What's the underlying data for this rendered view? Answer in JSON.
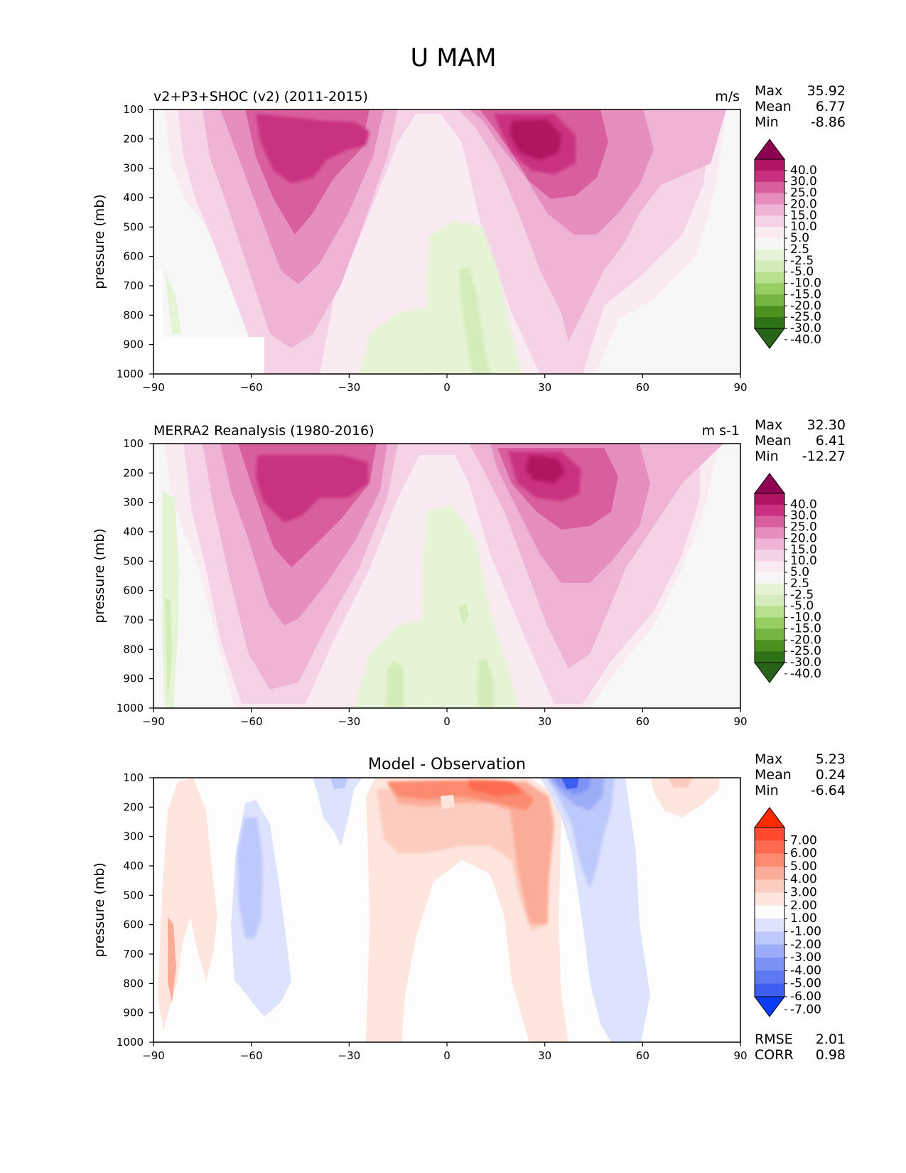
{
  "figure": {
    "title": "U MAM"
  },
  "chart_data": [
    {
      "type": "contour",
      "title": "v2+P3+SHOC (v2) (2011-2015)",
      "units": "m/s",
      "ylabel": "pressure (mb)",
      "xlabel": "",
      "xlim": [
        -90,
        90
      ],
      "ylim": [
        1000,
        100
      ],
      "x_ticks": [
        "−90",
        "−60",
        "−30",
        "0",
        "30",
        "60",
        "90"
      ],
      "y_ticks": [
        "100",
        "200",
        "300",
        "400",
        "500",
        "600",
        "700",
        "800",
        "900",
        "1000"
      ],
      "stats": [
        {
          "label": "Max",
          "value": "35.92"
        },
        {
          "label": "Mean",
          "value": "6.77"
        },
        {
          "label": "Min",
          "value": "-8.86"
        }
      ],
      "colorbar": {
        "labels": [
          "40.0",
          "30.0",
          "25.0",
          "20.0",
          "15.0",
          "10.0",
          "5.0",
          "2.5",
          "-2.5",
          "-5.0",
          "-10.0",
          "-15.0",
          "-20.0",
          "-25.0",
          "-30.0",
          "-40.0"
        ],
        "colors": [
          "#8e0152",
          "#b0135f",
          "#c9307f",
          "#d95f9c",
          "#e68fbf",
          "#efb3d6",
          "#f6d2e7",
          "#faeaf2",
          "#f7f7f7",
          "#e6f4d6",
          "#d3ecba",
          "#b8e08e",
          "#96ce62",
          "#73b443",
          "#4d9221",
          "#2e7218",
          "#276419"
        ]
      },
      "jets": [
        {
          "lat": -48,
          "plev": 200,
          "max": 30
        },
        {
          "lat": 28,
          "plev": 200,
          "max": 35.92
        }
      ]
    },
    {
      "type": "contour",
      "title": "MERRA2 Reanalysis (1980-2016)",
      "units": "m s-1",
      "ylabel": "pressure (mb)",
      "xlabel": "",
      "xlim": [
        -90,
        90
      ],
      "ylim": [
        1000,
        100
      ],
      "x_ticks": [
        "−90",
        "−60",
        "−30",
        "0",
        "30",
        "60",
        "90"
      ],
      "y_ticks": [
        "100",
        "200",
        "300",
        "400",
        "500",
        "600",
        "700",
        "800",
        "900",
        "1000"
      ],
      "stats": [
        {
          "label": "Max",
          "value": "32.30"
        },
        {
          "label": "Mean",
          "value": "6.41"
        },
        {
          "label": "Min",
          "value": "-12.27"
        }
      ],
      "colorbar": {
        "labels": [
          "40.0",
          "30.0",
          "25.0",
          "20.0",
          "15.0",
          "10.0",
          "5.0",
          "2.5",
          "-2.5",
          "-5.0",
          "-10.0",
          "-15.0",
          "-20.0",
          "-25.0",
          "-30.0",
          "-40.0"
        ],
        "colors": [
          "#8e0152",
          "#b0135f",
          "#c9307f",
          "#d95f9c",
          "#e68fbf",
          "#efb3d6",
          "#f6d2e7",
          "#faeaf2",
          "#f7f7f7",
          "#e6f4d6",
          "#d3ecba",
          "#b8e08e",
          "#96ce62",
          "#73b443",
          "#4d9221",
          "#2e7218",
          "#276419"
        ]
      },
      "jets": [
        {
          "lat": -48,
          "plev": 220,
          "max": 30
        },
        {
          "lat": 28,
          "plev": 200,
          "max": 32.3
        }
      ]
    },
    {
      "type": "contour",
      "title": "Model - Observation",
      "units": "",
      "ylabel": "pressure (mb)",
      "xlabel": "",
      "xlim": [
        -90,
        90
      ],
      "ylim": [
        1000,
        100
      ],
      "x_ticks": [
        "−90",
        "−60",
        "−30",
        "0",
        "30",
        "60",
        "90"
      ],
      "y_ticks": [
        "100",
        "200",
        "300",
        "400",
        "500",
        "600",
        "700",
        "800",
        "900",
        "1000"
      ],
      "stats": [
        {
          "label": "Max",
          "value": "5.23"
        },
        {
          "label": "Mean",
          "value": "0.24"
        },
        {
          "label": "Min",
          "value": "-6.64"
        }
      ],
      "metrics": [
        {
          "label": "RMSE",
          "value": "2.01"
        },
        {
          "label": "CORR",
          "value": "0.98"
        }
      ],
      "colorbar": {
        "labels": [
          "7.00",
          "6.00",
          "5.00",
          "4.00",
          "3.00",
          "2.00",
          "1.00",
          "-1.00",
          "-2.00",
          "-3.00",
          "-4.00",
          "-5.00",
          "-6.00",
          "-7.00"
        ],
        "colors": [
          "#ff2a00",
          "#ff4a30",
          "#fd6a50",
          "#fb8a70",
          "#fbac98",
          "#fdccc0",
          "#fee6de",
          "#fdfdfd",
          "#dde3fd",
          "#bdc8fb",
          "#9dacf8",
          "#7d92f6",
          "#5d78f3",
          "#3d5ef0",
          "#0a3cf5"
        ]
      }
    }
  ]
}
